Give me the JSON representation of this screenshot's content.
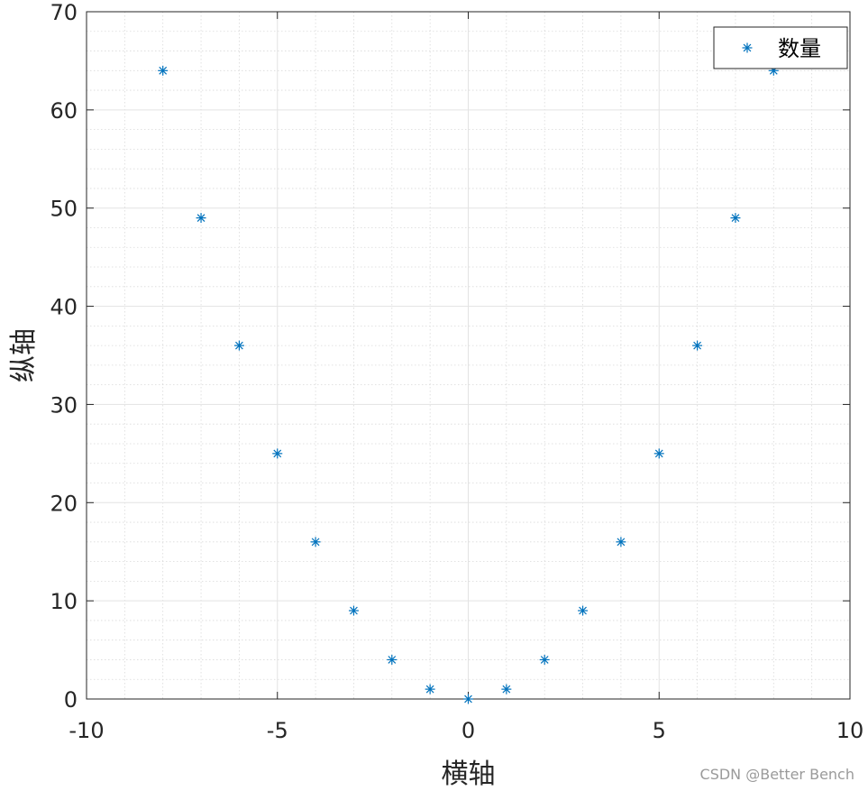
{
  "chart_data": {
    "type": "scatter",
    "xlabel": "横轴",
    "ylabel": "纵轴",
    "xlim": [
      -10,
      10
    ],
    "ylim": [
      0,
      70
    ],
    "x_ticks": [
      -10,
      -5,
      0,
      5,
      10
    ],
    "y_ticks": [
      0,
      10,
      20,
      30,
      40,
      50,
      60,
      70
    ],
    "x_tick_labels": [
      "-10",
      "-5",
      "0",
      "5",
      "10"
    ],
    "y_tick_labels": [
      "0",
      "10",
      "20",
      "30",
      "40",
      "50",
      "60",
      "70"
    ],
    "grid": true,
    "minor_grid": true,
    "legend_position": "top-right",
    "marker": "asterisk",
    "series": [
      {
        "name": "数量",
        "color": "#0072BD",
        "x": [
          -8,
          -7,
          -6,
          -5,
          -4,
          -3,
          -2,
          -1,
          0,
          1,
          2,
          3,
          4,
          5,
          6,
          7,
          8
        ],
        "y": [
          64,
          49,
          36,
          25,
          16,
          9,
          4,
          1,
          0,
          1,
          4,
          9,
          16,
          25,
          36,
          49,
          64
        ]
      }
    ]
  },
  "watermark": "CSDN @Better Bench"
}
